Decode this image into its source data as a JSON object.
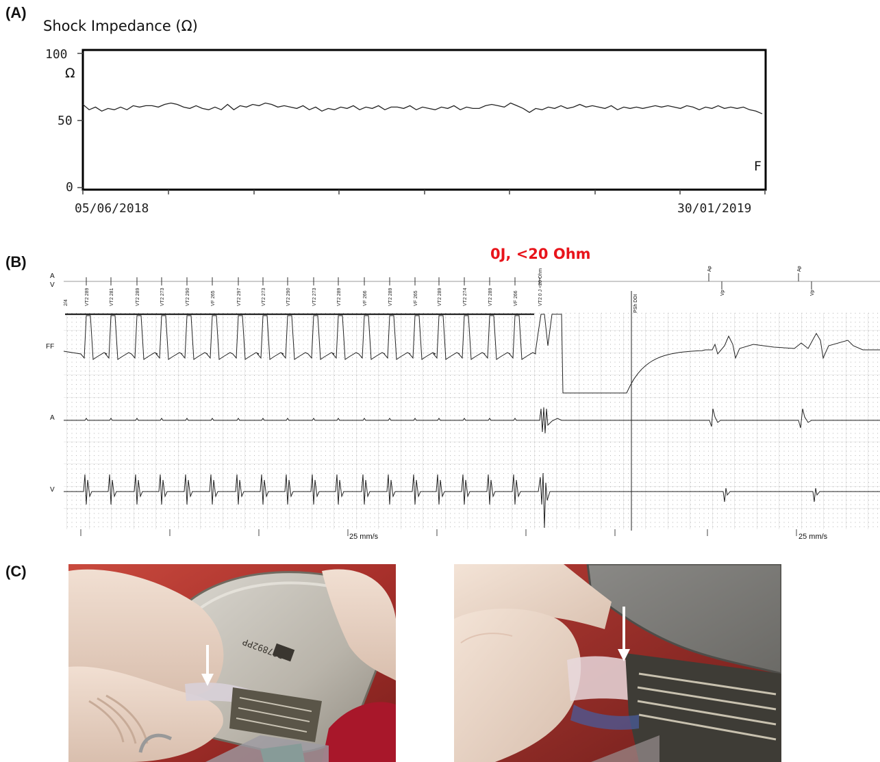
{
  "panels": {
    "a": {
      "letter": "(A)",
      "title": "Shock Impedance (Ω)",
      "y_ticks": [
        "100",
        "50",
        "0"
      ],
      "y_unit": "Ω",
      "x_start_label": "05/06/2018",
      "x_end_label": "30/01/2019",
      "corner_label": "F",
      "line_color": "#222222"
    },
    "b": {
      "letter": "(B)",
      "annotation": "0J, <20 Ohm",
      "annotation_color": "#e8141b",
      "row_a_label": "A",
      "row_v_label": "V",
      "channel_labels": [
        "FF",
        "A",
        "V"
      ],
      "speed_label_1": "25 mm/s",
      "speed_label_2": "25 mm/s",
      "marker_labels": [
        "2/4",
        "VT2 289",
        "VT2 281",
        "VT2 289",
        "VT2 273",
        "VT2 290",
        "VF 265",
        "VT2 297",
        "VT2 273",
        "VT2 290",
        "VT2 273",
        "VT2 289",
        "VF 266",
        "VT2 289",
        "VF 265",
        "VT2 289",
        "VT2 274",
        "VT2 289",
        "VF 266",
        "VT2 0 J <20 Ohm"
      ],
      "pacing_labels": {
        "psh": "PSh DDI",
        "ap1": "Ap",
        "ap2": "Ap",
        "vp1": "Vp",
        "vp2": "Vp"
      }
    },
    "c": {
      "letter": "(C)",
      "photo_left": "surgical-photo-device-connector",
      "photo_right": "surgical-photo-lead-connector",
      "device_serial": "PO7892PP"
    }
  },
  "chart_data": {
    "type": "line",
    "title": "Shock Impedance (Ω)",
    "xlabel": "",
    "ylabel": "Ω",
    "ylim": [
      0,
      100
    ],
    "x_range": [
      "05/06/2018",
      "30/01/2019"
    ],
    "series": [
      {
        "values": [
          62,
          58,
          60,
          57,
          59,
          58,
          60,
          58,
          61,
          60,
          61,
          61,
          60,
          62,
          63,
          62,
          60,
          59,
          61,
          59,
          58,
          60,
          58,
          62,
          58,
          61,
          60,
          62,
          61,
          63,
          62,
          60,
          61,
          60,
          59,
          61,
          58,
          60,
          57,
          59,
          58,
          60,
          59,
          61,
          58,
          60,
          59,
          61,
          58,
          60,
          60,
          59,
          61,
          58,
          60,
          59,
          58,
          60,
          59,
          61,
          58,
          60,
          59,
          59,
          61,
          62,
          61,
          60,
          63,
          61,
          59,
          56,
          59,
          58,
          60,
          59,
          61,
          59,
          60,
          62,
          60,
          61,
          60,
          59,
          61,
          58,
          60,
          59,
          60,
          59,
          60,
          61,
          60,
          61,
          60,
          59,
          61,
          60,
          58,
          60,
          59,
          61,
          59,
          60,
          59,
          60,
          58,
          57,
          55
        ]
      }
    ]
  }
}
